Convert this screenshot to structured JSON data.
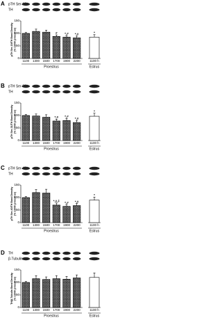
{
  "chart_data": [
    {
      "type": "bar",
      "panel": "A",
      "blots": [
        "pTH Ser-19",
        "TH"
      ],
      "y_label": [
        "pTH Ser-19/TH Band Density",
        "(% 1100h proestrus)"
      ],
      "categories": [
        "1100",
        "1300",
        "1500",
        "1700",
        "1900",
        "2200",
        "1100 h"
      ],
      "group_labels": [
        "Proestrus",
        "Estrus"
      ],
      "values": [
        100,
        108,
        105,
        88,
        85,
        82,
        85
      ],
      "errors": [
        4,
        9,
        8,
        6,
        6,
        7,
        10
      ],
      "annotations": [
        null,
        null,
        null,
        "#",
        "*,#",
        "*,#",
        "*"
      ],
      "bar_styles": [
        "crosshatch",
        "crosshatch",
        "crosshatch",
        "crosshatch",
        "crosshatch",
        "crosshatch",
        "open"
      ],
      "ylim": [
        0,
        150
      ],
      "yticks": [
        0,
        50,
        100,
        150
      ]
    },
    {
      "type": "bar",
      "panel": "B",
      "blots": [
        "pTH Ser-31",
        "TH"
      ],
      "y_label": [
        "pTH Ser-31/TH Band Density",
        "(% 1100h proestrus)"
      ],
      "categories": [
        "1100",
        "1300",
        "1500",
        "1700",
        "1900",
        "2200",
        "1100 h"
      ],
      "group_labels": [
        "Proestrus",
        "Estrus"
      ],
      "values": [
        100,
        98,
        93,
        78,
        80,
        72,
        97
      ],
      "errors": [
        4,
        8,
        10,
        7,
        8,
        8,
        12
      ],
      "annotations": [
        null,
        null,
        null,
        "*,#",
        "*,#",
        "*,#",
        "*"
      ],
      "bar_styles": [
        "crosshatch",
        "crosshatch",
        "crosshatch",
        "crosshatch",
        "crosshatch",
        "crosshatch",
        "open"
      ],
      "ylim": [
        0,
        150
      ],
      "yticks": [
        0,
        50,
        100,
        150
      ]
    },
    {
      "type": "bar",
      "panel": "C",
      "blots": [
        "pTH Ser-40",
        "TH"
      ],
      "y_label": [
        "pTH Ser-40/TH Band Density",
        "(% 1100h proestrus)"
      ],
      "categories": [
        "1100",
        "1300",
        "1500",
        "1700",
        "1900",
        "2200",
        "1100 h"
      ],
      "group_labels": [
        "Proestrus",
        "Estrus"
      ],
      "values": [
        100,
        120,
        118,
        70,
        65,
        68,
        90
      ],
      "errors": [
        4,
        12,
        15,
        8,
        7,
        8,
        12
      ],
      "annotations": [
        null,
        null,
        null,
        "*,#,‡",
        "*,#",
        "*,#",
        "*"
      ],
      "bar_styles": [
        "crosshatch",
        "crosshatch",
        "crosshatch",
        "crosshatch",
        "crosshatch",
        "crosshatch",
        "open"
      ],
      "ylim": [
        0,
        150
      ],
      "yticks": [
        0,
        50,
        100,
        150
      ]
    },
    {
      "type": "bar",
      "panel": "D",
      "blots": [
        "TH",
        "β-Tubulin"
      ],
      "y_label": [
        "TH/β-Tubulin Band Density",
        "(% 1100h proestrus)"
      ],
      "categories": [
        "1100",
        "1300",
        "1500",
        "1700",
        "1900",
        "2200",
        "1100 h"
      ],
      "group_labels": [
        "Proestrus",
        "Estrus"
      ],
      "values": [
        100,
        115,
        112,
        115,
        113,
        118,
        120
      ],
      "errors": [
        4,
        12,
        10,
        12,
        11,
        12,
        18
      ],
      "annotations": [
        null,
        null,
        null,
        null,
        null,
        null,
        null
      ],
      "bar_styles": [
        "crosshatch",
        "crosshatch",
        "crosshatch",
        "crosshatch",
        "crosshatch",
        "crosshatch",
        "open"
      ],
      "ylim": [
        0,
        150
      ],
      "yticks": [
        0,
        50,
        100,
        150
      ]
    }
  ]
}
